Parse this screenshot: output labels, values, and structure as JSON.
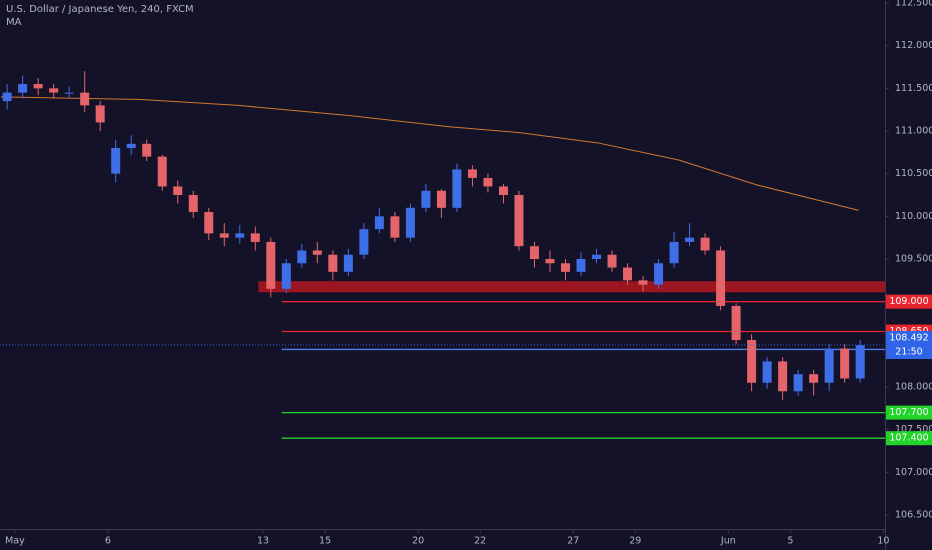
{
  "chart_data": {
    "type": "candlestick",
    "title": "U.S. Dollar / Japanese Yen, 240, FXCM",
    "x": [
      -0.25,
      0.25,
      0.75,
      1.25,
      1.75,
      2.25,
      2.75,
      3.25,
      3.75,
      4.25,
      4.75,
      5.25,
      5.75,
      6.25,
      6.75,
      7.25,
      7.75,
      8.25,
      8.75,
      9.25,
      9.75,
      10.25,
      10.75,
      11.25,
      11.75,
      12.25,
      12.75,
      13.25,
      13.75,
      14.25,
      14.75,
      15.25,
      15.75,
      16.25,
      16.75,
      17.25,
      17.75,
      18.25,
      18.75,
      19.25,
      19.75,
      20.25,
      20.75,
      21.25,
      21.75,
      22.25,
      22.75,
      23.25,
      23.75,
      24.25,
      24.75,
      25.25,
      25.75,
      26.25,
      26.75,
      27.25
    ],
    "open": [
      111.35,
      111.45,
      111.55,
      111.5,
      111.45,
      111.45,
      111.3,
      110.5,
      110.8,
      110.85,
      110.7,
      110.35,
      110.25,
      110.05,
      109.8,
      109.75,
      109.8,
      109.7,
      109.15,
      109.45,
      109.6,
      109.55,
      109.35,
      109.55,
      109.85,
      110.0,
      109.75,
      110.1,
      110.3,
      110.1,
      110.55,
      110.45,
      110.35,
      110.25,
      109.65,
      109.5,
      109.45,
      109.35,
      109.5,
      109.55,
      109.4,
      109.25,
      109.2,
      109.45,
      109.7,
      109.75,
      109.6,
      108.95,
      108.55,
      108.05,
      108.3,
      107.95,
      108.15,
      108.05,
      108.45,
      108.1
    ],
    "high": [
      111.55,
      111.65,
      111.62,
      111.55,
      111.52,
      111.7,
      111.35,
      110.9,
      110.95,
      110.9,
      110.72,
      110.42,
      110.3,
      110.1,
      109.92,
      109.9,
      109.88,
      109.75,
      109.5,
      109.68,
      109.7,
      109.6,
      109.62,
      109.92,
      110.1,
      110.05,
      110.15,
      110.38,
      110.32,
      110.62,
      110.6,
      110.5,
      110.38,
      110.3,
      109.7,
      109.6,
      109.5,
      109.58,
      109.62,
      109.6,
      109.45,
      109.3,
      109.5,
      109.82,
      109.92,
      109.8,
      109.65,
      108.98,
      108.62,
      108.35,
      108.35,
      108.2,
      108.2,
      108.5,
      108.5,
      108.55
    ],
    "low": [
      111.25,
      111.38,
      111.42,
      111.38,
      111.38,
      111.22,
      111.0,
      110.4,
      110.72,
      110.65,
      110.3,
      110.15,
      109.98,
      109.72,
      109.65,
      109.68,
      109.6,
      109.05,
      109.1,
      109.4,
      109.45,
      109.25,
      109.3,
      109.5,
      109.8,
      109.7,
      109.7,
      110.05,
      109.98,
      110.05,
      110.35,
      110.28,
      110.15,
      109.6,
      109.4,
      109.35,
      109.25,
      109.3,
      109.45,
      109.35,
      109.2,
      109.12,
      109.15,
      109.4,
      109.65,
      109.55,
      108.9,
      108.5,
      107.95,
      107.98,
      107.85,
      107.9,
      107.9,
      107.95,
      108.05,
      108.05
    ],
    "close": [
      111.45,
      111.55,
      111.5,
      111.45,
      111.45,
      111.3,
      111.1,
      110.8,
      110.85,
      110.7,
      110.35,
      110.25,
      110.05,
      109.8,
      109.75,
      109.8,
      109.7,
      109.15,
      109.45,
      109.6,
      109.55,
      109.35,
      109.55,
      109.85,
      110.0,
      109.75,
      110.1,
      110.3,
      110.1,
      110.55,
      110.45,
      110.35,
      110.25,
      109.65,
      109.5,
      109.45,
      109.35,
      109.5,
      109.55,
      109.4,
      109.25,
      109.2,
      109.45,
      109.7,
      109.75,
      109.6,
      108.95,
      108.55,
      108.05,
      108.3,
      107.95,
      108.15,
      108.05,
      108.45,
      108.1,
      108.49
    ],
    "up_color": "#3f6fe8",
    "down_color": "#e5646a",
    "ma": {
      "name": "MA",
      "color": "#d5772f",
      "x": [
        -0.45,
        4,
        7.2,
        10.8,
        14,
        16.3,
        18.8,
        21.4,
        23.9,
        27.2
      ],
      "values": [
        111.4,
        111.37,
        111.3,
        111.18,
        111.05,
        110.98,
        110.86,
        110.66,
        110.37,
        110.07
      ]
    },
    "zone": {
      "ylim": [
        109.11,
        109.24
      ],
      "x_start": 7.85,
      "color": "#9b1620"
    },
    "levels": [
      {
        "value": 109.0,
        "label": "109.000",
        "color": "#e8252e",
        "x_start": 8.6
      },
      {
        "value": 108.65,
        "label": "108.650",
        "color": "#e8252e",
        "x_start": 8.6
      },
      {
        "value": 108.44,
        "label": "108.440",
        "color": "#4f7ff0",
        "x_start": 8.6
      },
      {
        "value": 107.7,
        "label": "107.700",
        "color": "#22d32a",
        "x_start": 8.6
      },
      {
        "value": 107.4,
        "label": "107.400",
        "color": "#22d32a",
        "x_start": 8.6
      }
    ],
    "current": {
      "value": 108.492,
      "label": "108.492",
      "countdown": "21:50",
      "color": "#2f64e6"
    },
    "xlim": [
      -0.48,
      28.05
    ],
    "ylim": [
      106.5,
      112.5
    ],
    "xticks": [
      {
        "value": 0,
        "label": "May"
      },
      {
        "value": 3,
        "label": "6"
      },
      {
        "value": 8,
        "label": "13"
      },
      {
        "value": 10,
        "label": "15"
      },
      {
        "value": 13,
        "label": "20"
      },
      {
        "value": 15,
        "label": "22"
      },
      {
        "value": 18,
        "label": "27"
      },
      {
        "value": 20,
        "label": "29"
      },
      {
        "value": 23,
        "label": "Jun"
      },
      {
        "value": 25,
        "label": "5"
      },
      {
        "value": 28,
        "label": "10"
      }
    ],
    "yticks": [
      {
        "value": 106.5,
        "label": "106.500"
      },
      {
        "value": 107,
        "label": "107.000"
      },
      {
        "value": 107.5,
        "label": "107.500"
      },
      {
        "value": 108,
        "label": "108.000"
      },
      {
        "value": 108.5,
        "label": "108.500"
      },
      {
        "value": 109,
        "label": "109.000"
      },
      {
        "value": 109.5,
        "label": "109.500"
      },
      {
        "value": 110,
        "label": "110.000"
      },
      {
        "value": 110.5,
        "label": "110.500"
      },
      {
        "value": 111,
        "label": "111.000"
      },
      {
        "value": 111.5,
        "label": "111.500"
      },
      {
        "value": 112,
        "label": "112.000"
      },
      {
        "value": 112.5,
        "label": "112.500"
      }
    ]
  }
}
